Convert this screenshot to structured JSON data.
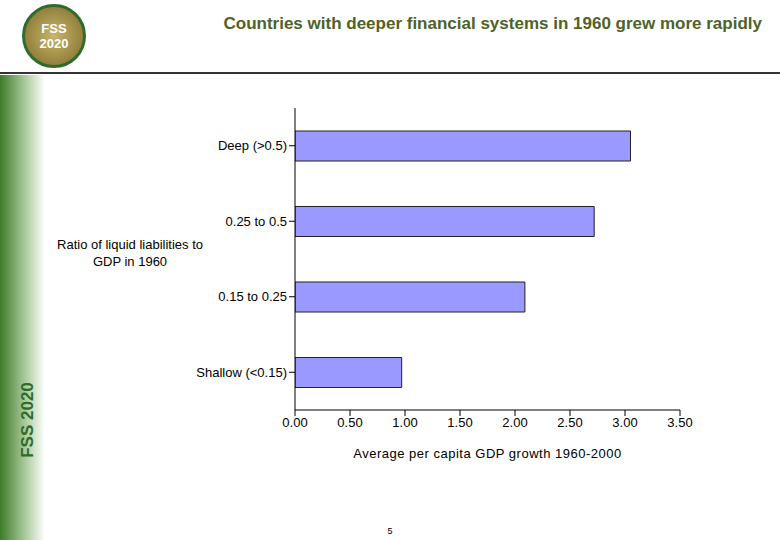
{
  "chart_data": {
    "type": "bar",
    "title": "Countries with deeper financial systems in 1960 grew more rapidly",
    "orientation": "horizontal",
    "categories": [
      "Deep (>0.5)",
      "0.25 to 0.5",
      "0.15 to 0.25",
      "Shallow (<0.15)"
    ],
    "values": [
      3.05,
      2.72,
      2.09,
      0.97
    ],
    "color": "#9999ff",
    "xlabel": "Average per capita GDP growth 1960-2000",
    "ylabel": "Ratio of liquid liabilities to GDP in 1960",
    "xlim": [
      0,
      3.5
    ],
    "xticks": [
      {
        "value": 0,
        "label": "0.00"
      },
      {
        "value": 0.5,
        "label": "0.50"
      },
      {
        "value": 1,
        "label": "1.00"
      },
      {
        "value": 1.5,
        "label": "1.50"
      },
      {
        "value": 2,
        "label": "2.00"
      },
      {
        "value": 2.5,
        "label": "2.50"
      },
      {
        "value": 3,
        "label": "3.00"
      },
      {
        "value": 3.5,
        "label": "3.50"
      }
    ],
    "grid": false
  },
  "slide": {
    "logo": "FSS 2020",
    "side_text": "FSS 2020",
    "page_number": "5"
  }
}
